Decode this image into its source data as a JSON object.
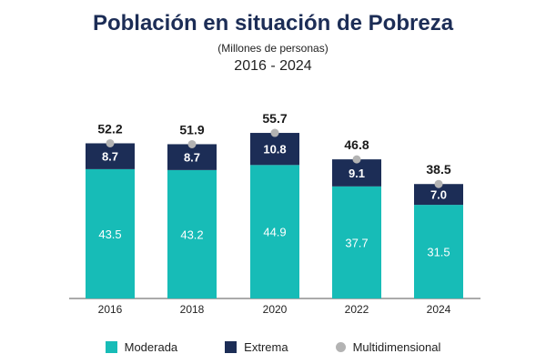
{
  "chart_data": {
    "type": "bar",
    "stacked": true,
    "title": "Población en situación de Pobreza",
    "subtitle": "(Millones de personas)",
    "period": "2016 - 2024",
    "categories": [
      "2016",
      "2018",
      "2020",
      "2022",
      "2024"
    ],
    "series": [
      {
        "name": "Moderada",
        "values": [
          43.5,
          43.2,
          44.9,
          37.7,
          31.5
        ],
        "color": "#17bcb7"
      },
      {
        "name": "Extrema",
        "values": [
          8.7,
          8.7,
          10.8,
          9.1,
          7.0
        ],
        "color": "#1c2d56"
      }
    ],
    "totals": {
      "name": "Multidimensional",
      "values": [
        52.2,
        51.9,
        55.7,
        46.8,
        38.5
      ],
      "color": "#b3b3b3"
    },
    "ylim": [
      0,
      75
    ],
    "legend_position": "bottom"
  }
}
